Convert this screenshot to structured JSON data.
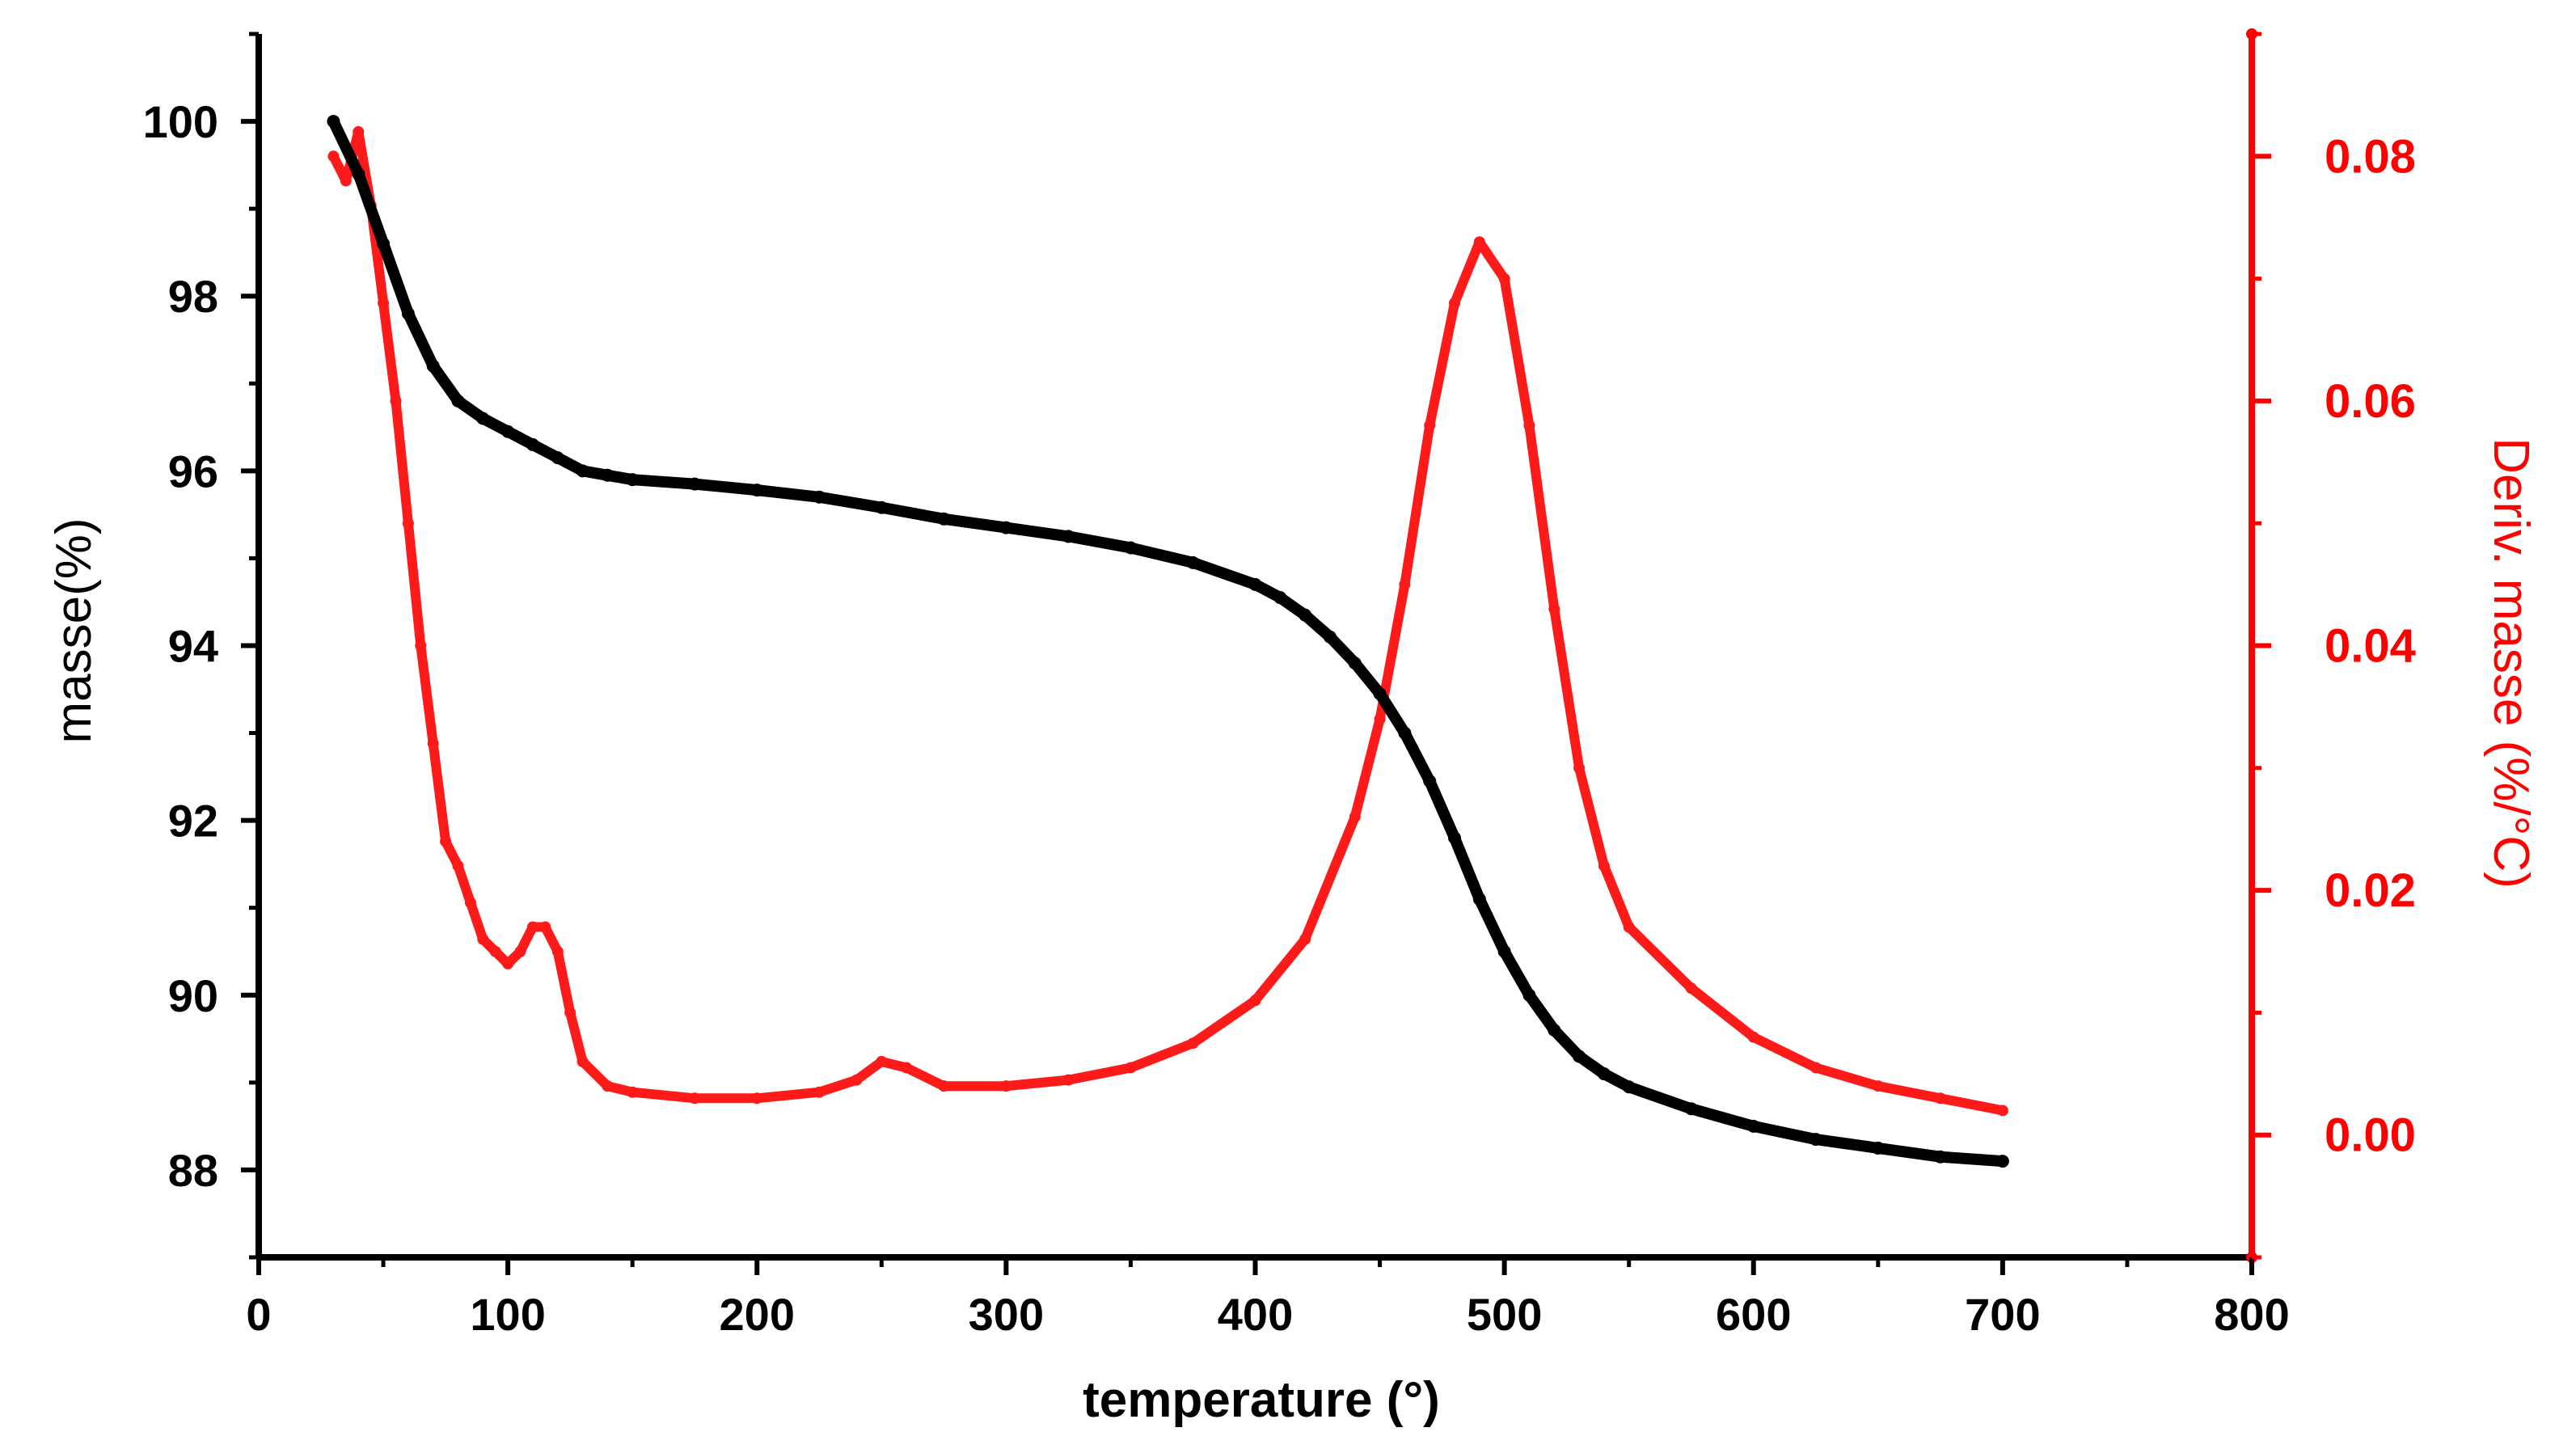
{
  "chart_data": {
    "type": "scatter",
    "xlabel": "temperature (°)",
    "ylabel_left": "masse(%)",
    "ylabel_right": "Deriv. masse (%/°C)",
    "xlim": [
      0,
      800
    ],
    "ylim_left": [
      87,
      101
    ],
    "ylim_right": [
      -0.01,
      0.09
    ],
    "x_ticks": [
      0,
      100,
      200,
      300,
      400,
      500,
      600,
      700,
      800
    ],
    "y_ticks_left": [
      88,
      90,
      92,
      94,
      96,
      98,
      100
    ],
    "y_ticks_right": [
      "0.00",
      "0.02",
      "0.04",
      "0.06",
      "0.08"
    ],
    "grid": false,
    "colors": {
      "mass": "#000000",
      "deriv": "#ff1a1a",
      "right_axis": "#ff0000",
      "left_axis": "#000000"
    },
    "series": [
      {
        "name": "masse",
        "axis": "left",
        "color": "#000000",
        "x": [
          30,
          40,
          50,
          60,
          70,
          80,
          90,
          100,
          110,
          120,
          130,
          140,
          150,
          175,
          200,
          225,
          250,
          275,
          300,
          325,
          350,
          375,
          400,
          410,
          420,
          430,
          440,
          450,
          460,
          470,
          480,
          490,
          500,
          510,
          520,
          530,
          540,
          550,
          575,
          600,
          625,
          650,
          675,
          700
        ],
        "y": [
          100.0,
          99.4,
          98.6,
          97.8,
          97.2,
          96.8,
          96.6,
          96.45,
          96.3,
          96.15,
          96.0,
          95.95,
          95.9,
          95.85,
          95.78,
          95.7,
          95.58,
          95.45,
          95.35,
          95.25,
          95.12,
          94.95,
          94.7,
          94.55,
          94.35,
          94.1,
          93.8,
          93.45,
          93.0,
          92.45,
          91.8,
          91.1,
          90.5,
          90.0,
          89.6,
          89.3,
          89.1,
          88.95,
          88.7,
          88.5,
          88.35,
          88.25,
          88.15,
          88.1
        ]
      },
      {
        "name": "deriv. masse",
        "axis": "right",
        "color": "#ff1a1a",
        "x": [
          30,
          35,
          40,
          45,
          50,
          55,
          60,
          65,
          70,
          75,
          80,
          85,
          90,
          95,
          100,
          105,
          110,
          115,
          120,
          125,
          130,
          140,
          150,
          175,
          200,
          225,
          240,
          250,
          260,
          275,
          300,
          325,
          350,
          375,
          400,
          420,
          440,
          450,
          460,
          470,
          480,
          490,
          500,
          510,
          520,
          530,
          540,
          550,
          575,
          600,
          625,
          650,
          675,
          700
        ],
        "y": [
          0.08,
          0.078,
          0.082,
          0.076,
          0.068,
          0.06,
          0.05,
          0.04,
          0.032,
          0.024,
          0.022,
          0.019,
          0.016,
          0.015,
          0.014,
          0.015,
          0.017,
          0.017,
          0.015,
          0.01,
          0.006,
          0.004,
          0.0035,
          0.003,
          0.003,
          0.0035,
          0.0045,
          0.006,
          0.0055,
          0.004,
          0.004,
          0.0045,
          0.0055,
          0.0075,
          0.011,
          0.016,
          0.026,
          0.034,
          0.045,
          0.058,
          0.068,
          0.073,
          0.07,
          0.058,
          0.043,
          0.03,
          0.022,
          0.017,
          0.012,
          0.008,
          0.0055,
          0.004,
          0.003,
          0.002
        ]
      }
    ]
  }
}
